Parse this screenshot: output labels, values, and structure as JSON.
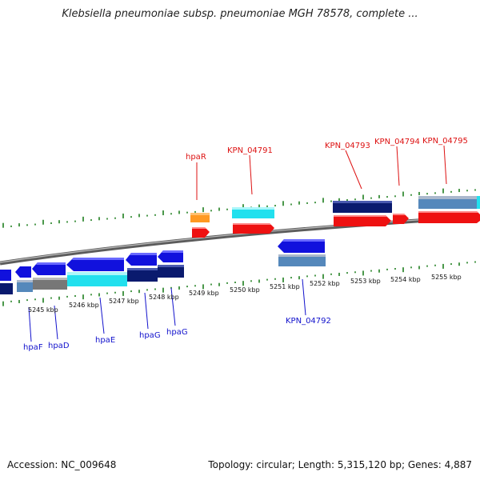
{
  "title": "Klebsiella pneumoniae subsp. pneumoniae MGH 78578, complete ...",
  "footer": {
    "accession": "Accession: NC_009648",
    "summary": "Topology: circular; Length: 5,315,120 bp; Genes: 4,887"
  },
  "colors": {
    "forward_gene": "#ee1111",
    "reverse_gene": "#1111dd",
    "highlight": "#22e0ee",
    "dark_navy": "#0a1a6e",
    "steel_blue": "#5588bb",
    "orange": "#ff9922",
    "backbone": "#888888",
    "tick_green": "#1e7e1e"
  },
  "scale": {
    "unit": "kbp",
    "ticks": [
      "5245 kbp",
      "5246 kbp",
      "5247 kbp",
      "5248 kbp",
      "5249 kbp",
      "5250 kbp",
      "5251 kbp",
      "5252 kbp",
      "5253 kbp",
      "5254 kbp",
      "5255 kbp"
    ]
  },
  "forward_labels": [
    "hpaR",
    "KPN_04791",
    "KPN_04793",
    "KPN_04794",
    "KPN_04795"
  ],
  "reverse_labels": [
    "hpaF",
    "hpaD",
    "hpaE",
    "hpaG",
    "hpaG",
    "KPN_04792"
  ]
}
